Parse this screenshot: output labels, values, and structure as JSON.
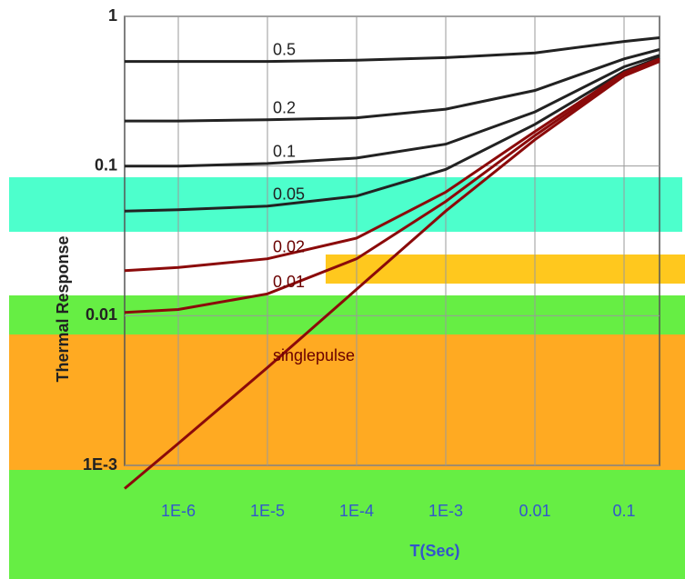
{
  "chart_data": {
    "type": "line",
    "ylabel": "Thermal Response",
    "xlabel": "T(Sec)",
    "x": [
      2.5e-07,
      1e-06,
      1e-05,
      0.0001,
      0.001,
      0.01,
      0.1,
      0.25
    ],
    "series": [
      {
        "name": "0.5",
        "color": "#222222",
        "values": [
          0.5,
          0.5,
          0.5,
          0.51,
          0.53,
          0.57,
          0.68,
          0.72
        ]
      },
      {
        "name": "0.2",
        "color": "#222222",
        "values": [
          0.2,
          0.2,
          0.204,
          0.21,
          0.24,
          0.32,
          0.52,
          0.6
        ]
      },
      {
        "name": "0.1",
        "color": "#222222",
        "values": [
          0.1,
          0.1,
          0.104,
          0.113,
          0.14,
          0.23,
          0.46,
          0.55
        ]
      },
      {
        "name": "0.05",
        "color": "#222222",
        "values": [
          0.05,
          0.051,
          0.054,
          0.063,
          0.095,
          0.19,
          0.43,
          0.53
        ]
      },
      {
        "name": "0.02",
        "color": "#8b0a0a",
        "values": [
          0.02,
          0.021,
          0.024,
          0.033,
          0.067,
          0.17,
          0.42,
          0.52
        ]
      },
      {
        "name": "0.01",
        "color": "#8b0a0a",
        "values": [
          0.0105,
          0.011,
          0.014,
          0.024,
          0.058,
          0.16,
          0.41,
          0.51
        ]
      },
      {
        "name": "singlepulse",
        "color": "#8b0a0a",
        "values": [
          0.0007,
          0.0014,
          0.0045,
          0.015,
          0.05,
          0.15,
          0.4,
          0.5
        ]
      }
    ],
    "xlim": [
      2.5e-07,
      0.25
    ],
    "ylim": [
      0.001,
      1
    ],
    "xticks": [
      {
        "value": 1e-06,
        "label": "1E-6"
      },
      {
        "value": 1e-05,
        "label": "1E-5"
      },
      {
        "value": 0.0001,
        "label": "1E-4"
      },
      {
        "value": 0.001,
        "label": "1E-3"
      },
      0.01,
      0.1
    ],
    "yticks": [
      {
        "value": 0.001,
        "label": "1E-3"
      },
      0.01,
      0.1,
      1
    ],
    "xscale": "log",
    "yscale": "log",
    "grid": true
  }
}
